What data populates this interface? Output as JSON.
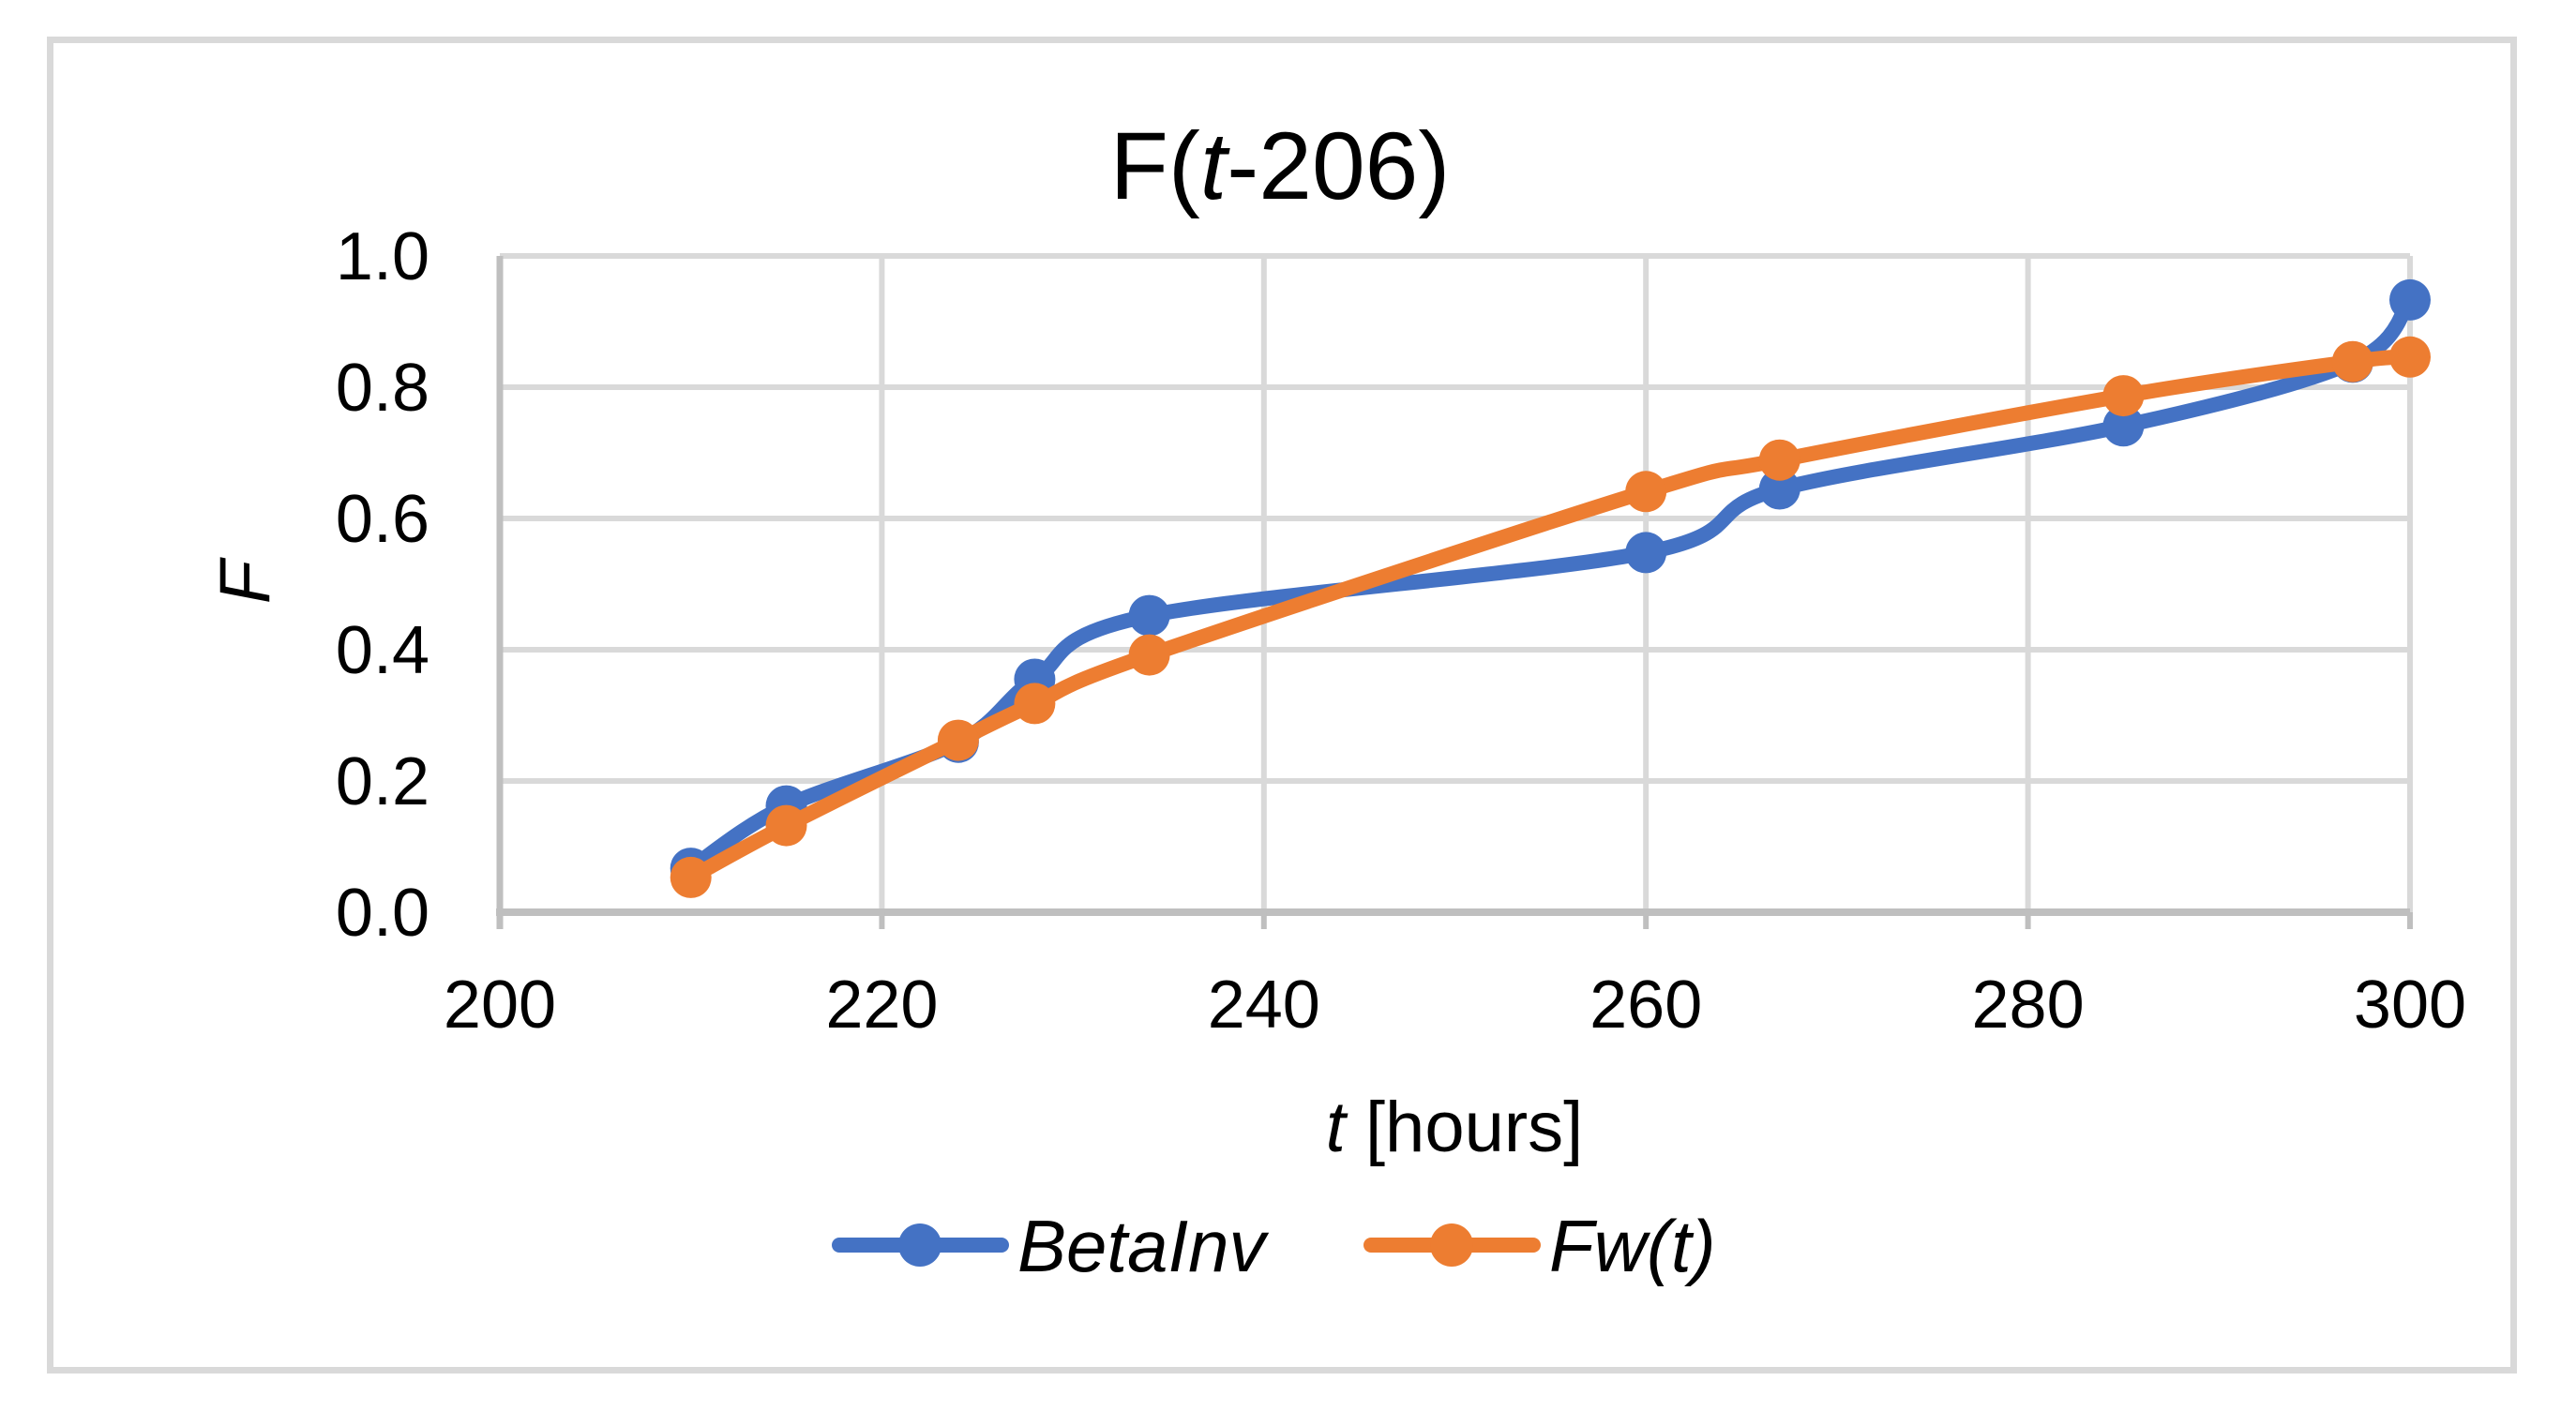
{
  "figure": {
    "background": "#ffffff",
    "border_color": "#d9d9d9"
  },
  "chart_data": {
    "type": "line",
    "title": "F(t-206)",
    "title_parts": [
      {
        "t": "F(",
        "italic": false
      },
      {
        "t": "t",
        "italic": true
      },
      {
        "t": "-206)",
        "italic": false
      }
    ],
    "x_axis": {
      "label": "t [hours]",
      "label_parts": [
        {
          "t": "t",
          "italic": true
        },
        {
          "t": " [hours]",
          "italic": false
        }
      ],
      "ticks": [
        200,
        220,
        240,
        260,
        280,
        300
      ],
      "range": [
        200,
        300
      ]
    },
    "y_axis": {
      "label": "F",
      "tick_labels": [
        "0.0",
        "0.2",
        "0.4",
        "0.6",
        "0.8",
        "1.0"
      ],
      "tick_values": [
        0.0,
        0.2,
        0.4,
        0.6,
        0.8,
        1.0
      ],
      "range": [
        0.0,
        1.0
      ]
    },
    "grid": true,
    "legend_position": "bottom",
    "smooth_lines": true,
    "series": [
      {
        "name": "BetaInv",
        "color": "#4472C4",
        "marker": "circle",
        "x": [
          210,
          215,
          224,
          228,
          234,
          260,
          267,
          285,
          297,
          300
        ],
        "y": [
          0.067,
          0.162,
          0.259,
          0.355,
          0.452,
          0.548,
          0.645,
          0.741,
          0.838,
          0.933
        ]
      },
      {
        "name": "Fw(t)",
        "color": "#ED7D31",
        "marker": "circle",
        "x": [
          210,
          215,
          224,
          228,
          234,
          260,
          267,
          285,
          297,
          300
        ],
        "y": [
          0.053,
          0.132,
          0.262,
          0.318,
          0.392,
          0.641,
          0.689,
          0.787,
          0.839,
          0.846
        ]
      }
    ],
    "colors": {
      "gridline": "#d9d9d9",
      "axis_line": "#bfbfbf",
      "text": "#000000"
    }
  }
}
